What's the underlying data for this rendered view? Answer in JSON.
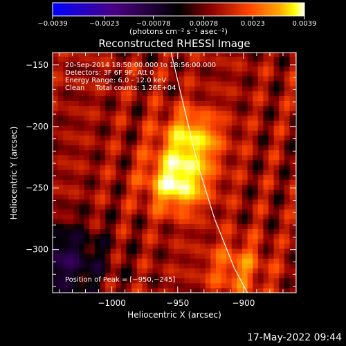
{
  "chart_data": {
    "type": "heatmap",
    "title": "Reconstructed RHESSI Image",
    "xlabel": "Heliocentric X (arcsec)",
    "ylabel": "Heliocentric Y (arcsec)",
    "xlim": [
      -1045,
      -860
    ],
    "ylim": [
      -335,
      -140
    ],
    "x_ticks": [
      -1000,
      -950,
      -900
    ],
    "x_tick_labels": [
      "−1000",
      "−950",
      "−900"
    ],
    "y_ticks": [
      -150,
      -200,
      -250,
      -300
    ],
    "y_tick_labels": [
      "−150",
      "−200",
      "−250",
      "−300"
    ],
    "colorbar": {
      "min": -0.0039,
      "max": 0.0039,
      "ticks": [
        -0.0039,
        -0.0023,
        -0.00078,
        0.00078,
        0.0023,
        0.0039
      ],
      "tick_labels": [
        "−0.0039",
        "−0.0023",
        "−0.00078",
        "0.00078",
        "0.0023",
        "0.0039"
      ],
      "units": "(photons cm⁻² s⁻¹ asec⁻²)"
    },
    "colors": [
      "#0000ff",
      "#4b0082",
      "#000000",
      "#8b0000",
      "#ff4500",
      "#ffa500",
      "#ffff00",
      "#ffffff"
    ],
    "sources": [
      {
        "x": -950,
        "y": -245,
        "relative": 1.0
      },
      {
        "x": -940,
        "y": -210,
        "relative": 0.8
      },
      {
        "x": -905,
        "y": -315,
        "relative": 0.45
      }
    ],
    "annotations": {
      "time": "20-Sep-2014 18:50:00.000 to 18:56:00.000",
      "detectors": "Detectors: 3F 6F 9F, Att 0",
      "energy": "Energy Range: 6.0 - 12.0 keV",
      "clean": "Clean     Total counts: 1.26E+04",
      "peak": "Position of Peak = [−950,−245]"
    },
    "limb": [
      [
        -955,
        -140
      ],
      [
        -945,
        -185
      ],
      [
        -935,
        -230
      ],
      [
        -922,
        -275
      ],
      [
        -907,
        -315
      ],
      [
        -897,
        -335
      ]
    ]
  },
  "timestamp": "17-May-2022 09:44"
}
